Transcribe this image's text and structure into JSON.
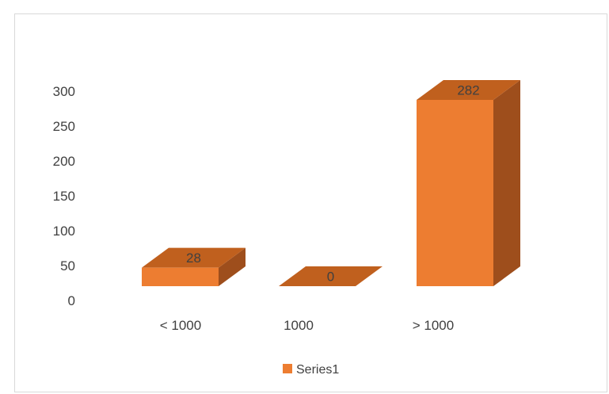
{
  "chart_data": {
    "type": "bar",
    "style": "3d-column",
    "categories": [
      "< 1000",
      "1000",
      "> 1000"
    ],
    "series": [
      {
        "name": "Series1",
        "values": [
          28,
          0,
          282
        ],
        "data_labels": [
          "28",
          "0",
          "282"
        ]
      }
    ],
    "yticks": [
      "0",
      "50",
      "100",
      "150",
      "200",
      "250",
      "300"
    ],
    "ylim": [
      0,
      300
    ],
    "grid": false,
    "legend_position": "bottom",
    "colors": {
      "front": "#ED7D31",
      "top": "#C0601E",
      "side": "#9E4E1C"
    }
  }
}
